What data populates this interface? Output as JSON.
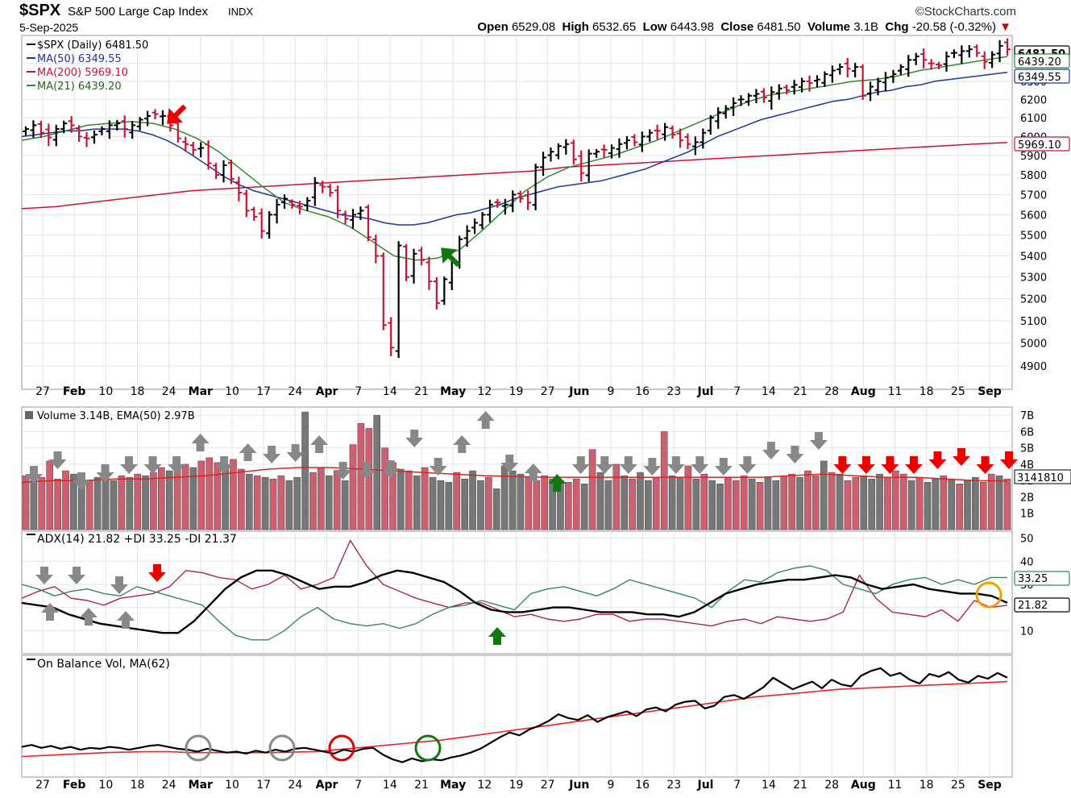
{
  "header": {
    "symbol": "$SPX",
    "name": "S&P 500 Large Cap Index",
    "exchange": "INDX",
    "date": "5-Sep-2025",
    "brand": "©StockCharts.com",
    "open_label": "Open",
    "open": "6529.08",
    "high_label": "High",
    "high": "6532.65",
    "low_label": "Low",
    "low": "6443.98",
    "close_label": "Close",
    "close": "6481.50",
    "volume_label": "Volume",
    "volume": "3.1B",
    "change_label": "Chg",
    "change": "-20.58 (-0.32%)",
    "change_marker": "▼"
  },
  "colors": {
    "up_bar": "#000000",
    "down_bar": "#cc1133",
    "ma50": "#223399",
    "ma200": "#cc1133",
    "ma21": "#338833",
    "vol_up": "#777777",
    "vol_down": "#cc6070",
    "adx": "#000000",
    "plus_di": "#338855",
    "minus_di": "#aa2255",
    "obv": "#000000",
    "obv_ma": "#ee2222",
    "arrow_red": "#ee0000",
    "arrow_green": "#117711",
    "arrow_gray": "#888888",
    "circle_gray": "#888888",
    "circle_red": "#dd0000",
    "circle_green": "#117711",
    "circle_orange": "#f0a000"
  },
  "chart_data": [
    {
      "type": "line",
      "panel": "price",
      "legend": [
        "$SPX (Daily) 6481.50",
        "MA(50) 6349.55",
        "MA(200) 5969.10",
        "MA(21) 6439.20"
      ],
      "y_ticks": [
        4900,
        5000,
        5100,
        5200,
        5300,
        5400,
        5500,
        5600,
        5700,
        5800,
        5900,
        6000,
        6100,
        6200,
        6300,
        6400
      ],
      "y_scale": "log",
      "ylim": [
        4800,
        6560
      ],
      "price_labels": [
        {
          "text": "6481.50",
          "value": 6481.5,
          "style": "close"
        },
        {
          "text": "6439.20",
          "value": 6439.2,
          "style": "ma21"
        },
        {
          "text": "6349.55",
          "value": 6349.55,
          "style": "ma50"
        },
        {
          "text": "5969.10",
          "value": 5969.1,
          "style": "ma200"
        }
      ],
      "x_labels": [
        "27",
        "Feb",
        "10",
        "18",
        "24",
        "Mar",
        "10",
        "17",
        "24",
        "Apr",
        "7",
        "14",
        "21",
        "May",
        "12",
        "19",
        "27",
        "Jun",
        "9",
        "16",
        "23",
        "Jul",
        "7",
        "14",
        "21",
        "28",
        "Aug",
        "11",
        "18",
        "25",
        "Sep"
      ],
      "x_label_bold": [
        "Feb",
        "Mar",
        "Apr",
        "May",
        "Jun",
        "Jul",
        "Aug",
        "Sep"
      ],
      "close": [
        6040,
        6060,
        6020,
        5995,
        6040,
        6070,
        6060,
        6000,
        5990,
        6010,
        6040,
        6060,
        6070,
        6040,
        6060,
        6090,
        6110,
        6120,
        6110,
        6060,
        5990,
        5960,
        5930,
        5940,
        5860,
        5800,
        5850,
        5780,
        5710,
        5620,
        5590,
        5520,
        5600,
        5650,
        5680,
        5650,
        5640,
        5670,
        5760,
        5740,
        5710,
        5620,
        5580,
        5600,
        5620,
        5490,
        5400,
        5080,
        4980,
        5450,
        5300,
        5410,
        5380,
        5280,
        5180,
        5290,
        5370,
        5480,
        5520,
        5560,
        5600,
        5650,
        5660,
        5650,
        5700,
        5680,
        5660,
        5840,
        5890,
        5920,
        5950,
        5960,
        5880,
        5810,
        5910,
        5920,
        5930,
        5940,
        5960,
        5980,
        5970,
        6000,
        6020,
        6030,
        6050,
        6010,
        5980,
        5960,
        5970,
        6020,
        6100,
        6130,
        6150,
        6180,
        6200,
        6220,
        6230,
        6210,
        6240,
        6260,
        6250,
        6280,
        6300,
        6290,
        6310,
        6340,
        6360,
        6380,
        6370,
        6380,
        6220,
        6270,
        6300,
        6320,
        6340,
        6380,
        6420,
        6440,
        6420,
        6400,
        6390,
        6440,
        6460,
        6470,
        6480,
        6460,
        6410,
        6450,
        6500,
        6480
      ],
      "ma50": [
        6000,
        6010,
        6020,
        6030,
        6030,
        6040,
        6040,
        6040,
        6030,
        6010,
        5980,
        5940,
        5890,
        5840,
        5790,
        5750,
        5720,
        5700,
        5680,
        5660,
        5640,
        5620,
        5600,
        5590,
        5580,
        5560,
        5550,
        5550,
        5560,
        5580,
        5600,
        5610,
        5630,
        5650,
        5680,
        5700,
        5720,
        5740,
        5750,
        5760,
        5770,
        5790,
        5810,
        5830,
        5860,
        5890,
        5920,
        5960,
        6000,
        6030,
        6060,
        6090,
        6110,
        6130,
        6150,
        6170,
        6190,
        6200,
        6220,
        6240,
        6250,
        6270,
        6280,
        6300,
        6310,
        6320,
        6330,
        6340,
        6350
      ],
      "ma200": [
        5630,
        5640,
        5660,
        5680,
        5700,
        5720,
        5730,
        5740,
        5750,
        5760,
        5770,
        5780,
        5790,
        5800,
        5810,
        5820,
        5840,
        5850,
        5860,
        5870,
        5880,
        5890,
        5900,
        5910,
        5920,
        5930,
        5940,
        5950,
        5960,
        5969
      ],
      "ma21": [
        5980,
        6000,
        6030,
        6060,
        6070,
        6080,
        6070,
        6040,
        5990,
        5920,
        5830,
        5740,
        5660,
        5620,
        5590,
        5540,
        5470,
        5400,
        5380,
        5390,
        5430,
        5520,
        5620,
        5720,
        5790,
        5840,
        5870,
        5900,
        5940,
        5980,
        6030,
        6080,
        6130,
        6180,
        6220,
        6240,
        6260,
        6280,
        6300,
        6310,
        6330,
        6360,
        6380,
        6400,
        6420,
        6439
      ]
    },
    {
      "type": "bar",
      "panel": "volume",
      "legend": "Volume 3.14B, EMA(50) 2.97B",
      "unit": "B",
      "y_ticks": [
        "1B",
        "2B",
        "3B",
        "4B",
        "5B",
        "6B",
        "7B"
      ],
      "ylim": [
        0,
        7.5
      ],
      "last_label": "3141810",
      "volume": [
        3.3,
        3.0,
        3.2,
        4.2,
        3.1,
        3.6,
        3.4,
        3.2,
        3.0,
        3.2,
        3.1,
        3.0,
        3.3,
        3.2,
        3.4,
        3.3,
        3.5,
        3.8,
        3.6,
        3.9,
        4.0,
        3.8,
        4.2,
        4.4,
        4.1,
        3.9,
        4.3,
        3.7,
        3.4,
        3.3,
        3.2,
        3.1,
        3.3,
        3.0,
        3.2,
        7.2,
        3.5,
        3.8,
        3.3,
        3.6,
        3.0,
        5.2,
        6.5,
        6.2,
        7.0,
        5.0,
        4.1,
        3.7,
        3.6,
        3.3,
        3.8,
        3.2,
        3.0,
        2.9,
        3.5,
        3.1,
        3.6,
        3.0,
        3.2,
        2.5,
        3.9,
        3.6,
        3.4,
        3.2,
        3.0,
        3.3,
        3.1,
        3.0,
        2.9,
        3.1,
        2.8,
        4.9,
        3.5,
        3.0,
        4.0,
        3.3,
        3.1,
        3.5,
        3.0,
        3.2,
        6.0,
        3.3,
        3.2,
        3.9,
        3.1,
        3.4,
        3.0,
        2.8,
        3.2,
        3.0,
        3.3,
        3.1,
        2.9,
        3.2,
        3.0,
        3.3,
        3.4,
        3.2,
        3.6,
        3.3,
        4.2,
        3.5,
        3.4,
        3.0,
        3.2,
        3.3,
        3.1,
        3.4,
        3.2,
        3.6,
        3.4,
        3.0,
        3.2,
        2.9,
        3.1,
        3.3,
        3.1,
        2.8,
        3.0,
        3.2,
        2.9,
        3.4,
        3.3,
        3.1
      ],
      "down": [
        1,
        0,
        1,
        1,
        1,
        1,
        0,
        0,
        1,
        0,
        0,
        0,
        1,
        0,
        1,
        0,
        1,
        1,
        0,
        1,
        1,
        0,
        1,
        1,
        1,
        0,
        1,
        1,
        0,
        1,
        0,
        1,
        1,
        0,
        0,
        0,
        1,
        1,
        0,
        1,
        0,
        1,
        1,
        1,
        0,
        1,
        1,
        0,
        1,
        0,
        1,
        0,
        0,
        0,
        1,
        0,
        0,
        0,
        1,
        0,
        0,
        0,
        0,
        1,
        1,
        1,
        0,
        0,
        1,
        1,
        0,
        1,
        0,
        0,
        1,
        0,
        1,
        0,
        0,
        1,
        1,
        0,
        0,
        1,
        0,
        1,
        0,
        0,
        1,
        1,
        1,
        0,
        1,
        0,
        0,
        1,
        1,
        0,
        1,
        1,
        0,
        1,
        0,
        1,
        1,
        0,
        0,
        0,
        1,
        1,
        1,
        0,
        1,
        0,
        0,
        1,
        0,
        1,
        0,
        0,
        1,
        1,
        0,
        1,
        0
      ],
      "ema50": [
        2.9,
        3.0,
        3.0,
        3.1,
        3.1,
        3.2,
        3.3,
        3.5,
        3.7,
        3.8,
        3.8,
        3.7,
        3.6,
        3.5,
        3.4,
        3.3,
        3.25,
        3.2,
        3.2,
        3.2,
        3.2,
        3.2,
        3.2,
        3.2,
        3.2,
        3.3,
        3.4,
        3.3,
        3.2,
        3.2,
        3.1,
        3.0,
        2.97
      ]
    },
    {
      "type": "line",
      "panel": "adx",
      "legend": [
        "ADX(14) 21.82",
        "+DI 33.25",
        "-DI 21.37"
      ],
      "y_ticks": [
        10,
        20,
        30,
        40,
        50
      ],
      "ylim": [
        0,
        53
      ],
      "value_labels": [
        {
          "text": "33.25",
          "value": 33.25
        },
        {
          "text": "21.82",
          "value": 21.82
        }
      ],
      "adx": [
        22,
        21,
        20,
        17,
        15,
        13,
        12,
        11,
        10,
        9,
        9,
        14,
        21,
        28,
        33,
        36,
        36,
        34,
        31,
        28,
        29,
        29,
        31,
        34,
        36,
        35,
        33,
        31,
        27,
        22,
        19,
        18,
        18,
        19,
        20,
        20,
        19,
        18,
        18,
        18,
        17,
        17,
        16,
        18,
        22,
        26,
        28,
        30,
        31,
        32,
        32,
        33,
        34,
        33,
        30,
        28,
        29,
        30,
        28,
        27,
        26,
        26,
        25,
        22
      ],
      "plus_di": [
        30,
        28,
        25,
        27,
        28,
        26,
        25,
        29,
        27,
        25,
        23,
        21,
        14,
        8,
        6,
        6,
        10,
        16,
        20,
        15,
        13,
        12,
        13,
        11,
        13,
        17,
        20,
        21,
        23,
        21,
        19,
        26,
        28,
        29,
        27,
        25,
        28,
        32,
        30,
        28,
        26,
        24,
        20,
        27,
        32,
        31,
        35,
        37,
        38,
        36,
        30,
        28,
        26,
        30,
        32,
        33,
        30,
        32,
        30,
        33,
        33
      ],
      "minus_di": [
        24,
        27,
        29,
        24,
        23,
        21,
        24,
        25,
        26,
        29,
        36,
        35,
        33,
        32,
        28,
        30,
        34,
        28,
        30,
        33,
        49,
        38,
        30,
        27,
        24,
        22,
        20,
        22,
        22,
        19,
        16,
        17,
        15,
        14,
        15,
        17,
        17,
        14,
        15,
        15,
        14,
        13,
        12,
        14,
        15,
        13,
        16,
        15,
        14,
        15,
        18,
        34,
        24,
        18,
        17,
        16,
        19,
        14,
        23,
        20,
        21
      ]
    },
    {
      "type": "line",
      "panel": "obv",
      "legend": "On Balance Vol, MA(62)",
      "obv": [
        18,
        20,
        17,
        19,
        16,
        18,
        15,
        17,
        16,
        18,
        17,
        15,
        17,
        19,
        20,
        18,
        16,
        15,
        13,
        16,
        14,
        12,
        13,
        11,
        14,
        12,
        15,
        13,
        16,
        17,
        15,
        13,
        11,
        15,
        13,
        16,
        17,
        10,
        5,
        2,
        6,
        3,
        5,
        4,
        7,
        9,
        12,
        16,
        22,
        28,
        33,
        30,
        36,
        40,
        45,
        52,
        48,
        46,
        51,
        44,
        49,
        52,
        55,
        50,
        57,
        59,
        55,
        62,
        65,
        66,
        58,
        61,
        70,
        72,
        68,
        74,
        80,
        90,
        84,
        78,
        82,
        86,
        79,
        88,
        83,
        81,
        92,
        97,
        100,
        92,
        95,
        88,
        84,
        94,
        91,
        96,
        88,
        85,
        92,
        89,
        95,
        90
      ],
      "obv_ma": [
        8,
        9,
        10,
        11,
        12,
        12.5,
        13,
        13,
        12,
        12,
        12,
        12,
        12,
        12.5,
        13,
        15,
        17,
        19,
        21,
        23,
        25,
        28,
        31,
        34,
        37,
        40,
        43,
        46,
        49,
        52,
        55,
        58,
        61,
        64,
        67,
        70,
        72,
        74,
        76,
        78,
        79,
        80,
        81,
        82,
        83,
        84,
        85,
        86
      ]
    }
  ],
  "markers": {
    "price_arrows": [
      {
        "dir": "down-left",
        "color": "red"
      },
      {
        "dir": "up-left",
        "color": "green"
      }
    ],
    "vol_arrows": [
      {
        "d": "down",
        "c": "gray"
      },
      {
        "d": "down",
        "c": "gray"
      },
      {
        "d": "down",
        "c": "gray"
      },
      {
        "d": "down",
        "c": "gray"
      },
      {
        "d": "down",
        "c": "gray"
      },
      {
        "d": "down",
        "c": "gray"
      },
      {
        "d": "down",
        "c": "gray"
      },
      {
        "d": "up",
        "c": "gray"
      },
      {
        "d": "down",
        "c": "gray"
      },
      {
        "d": "up",
        "c": "gray"
      },
      {
        "d": "down",
        "c": "gray"
      },
      {
        "d": "down",
        "c": "gray"
      },
      {
        "d": "up",
        "c": "gray"
      },
      {
        "d": "down",
        "c": "gray"
      },
      {
        "d": "down",
        "c": "gray"
      },
      {
        "d": "down",
        "c": "gray"
      },
      {
        "d": "down",
        "c": "gray"
      },
      {
        "d": "down",
        "c": "gray"
      },
      {
        "d": "up",
        "c": "gray"
      },
      {
        "d": "up",
        "c": "gray"
      },
      {
        "d": "down",
        "c": "gray"
      },
      {
        "d": "up",
        "c": "gray"
      },
      {
        "d": "up",
        "c": "green"
      },
      {
        "d": "down",
        "c": "gray"
      },
      {
        "d": "down",
        "c": "gray"
      },
      {
        "d": "down",
        "c": "gray"
      },
      {
        "d": "down",
        "c": "gray"
      },
      {
        "d": "down",
        "c": "gray"
      },
      {
        "d": "down",
        "c": "gray"
      },
      {
        "d": "down",
        "c": "gray"
      },
      {
        "d": "down",
        "c": "gray"
      },
      {
        "d": "down",
        "c": "gray"
      },
      {
        "d": "down",
        "c": "gray"
      },
      {
        "d": "down",
        "c": "gray"
      },
      {
        "d": "down",
        "c": "red"
      },
      {
        "d": "down",
        "c": "red"
      },
      {
        "d": "down",
        "c": "red"
      },
      {
        "d": "down",
        "c": "red"
      },
      {
        "d": "down",
        "c": "red"
      },
      {
        "d": "down",
        "c": "red"
      },
      {
        "d": "down",
        "c": "red"
      },
      {
        "d": "down",
        "c": "red"
      }
    ],
    "adx_arrows": [
      {
        "d": "down",
        "c": "gray"
      },
      {
        "d": "up",
        "c": "gray"
      },
      {
        "d": "down",
        "c": "gray"
      },
      {
        "d": "up",
        "c": "gray"
      },
      {
        "d": "down",
        "c": "gray"
      },
      {
        "d": "up",
        "c": "gray"
      },
      {
        "d": "down",
        "c": "red"
      },
      {
        "d": "up",
        "c": "green"
      }
    ],
    "circles": [
      "gray",
      "gray",
      "red",
      "green",
      "orange"
    ]
  }
}
